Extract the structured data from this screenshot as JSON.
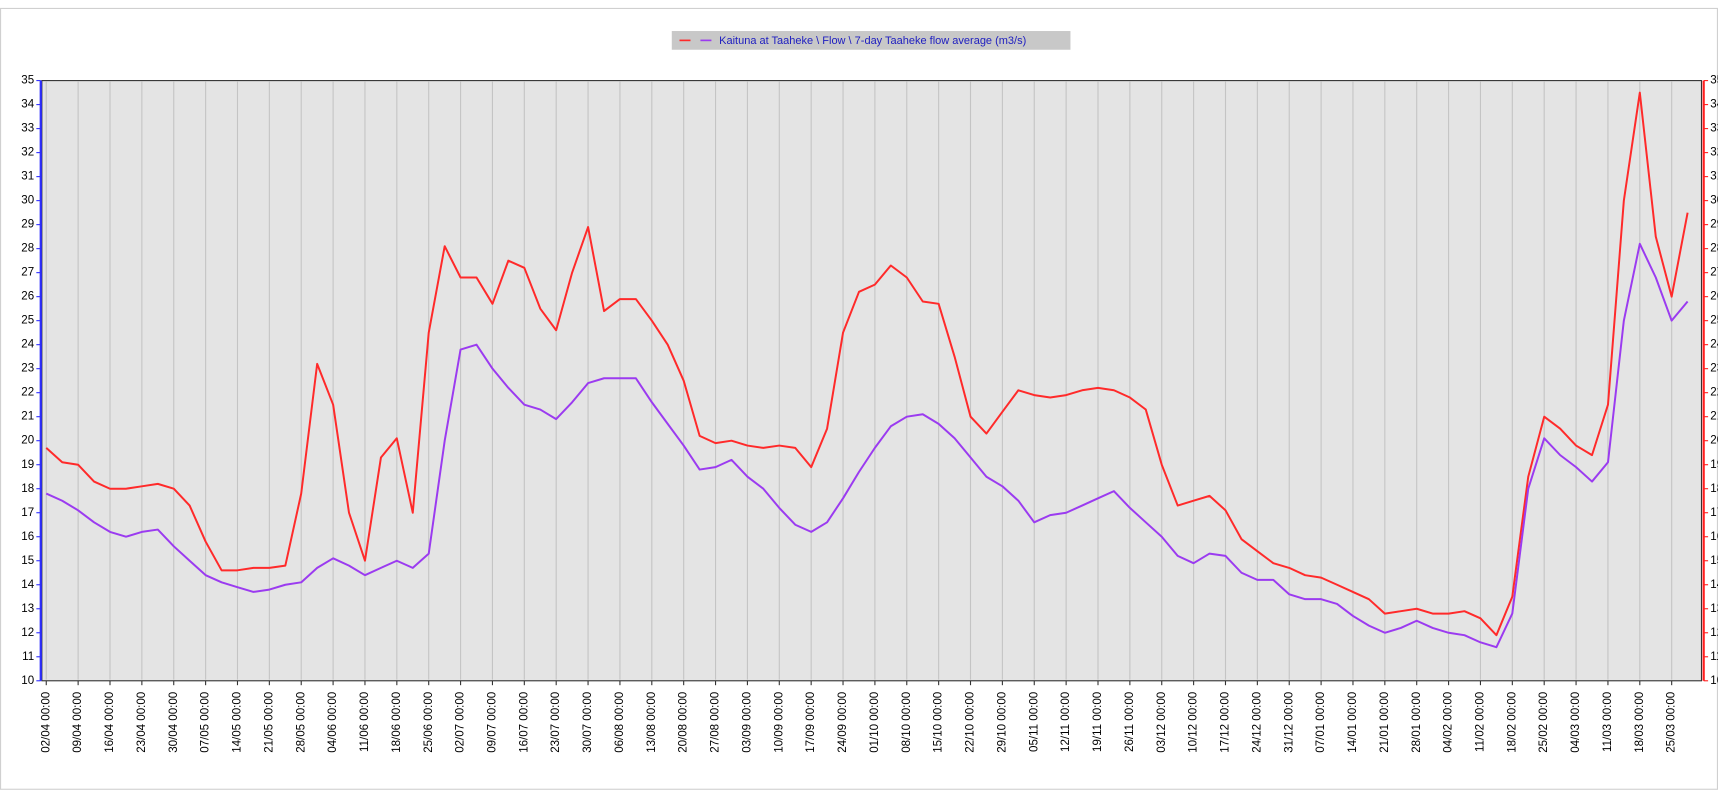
{
  "chart_data": {
    "type": "line",
    "legend_text": "Kaituna at Taaheke \\ Flow \\ 7-day Taaheke flow average (m3/s)",
    "legend": "top",
    "grid": true,
    "categories": [
      "02/04 00:00",
      null,
      "09/04 00:00",
      null,
      "16/04 00:00",
      null,
      "23/04 00:00",
      null,
      "30/04 00:00",
      null,
      "07/05 00:00",
      null,
      "14/05 00:00",
      null,
      "21/05 00:00",
      null,
      "28/05 00:00",
      null,
      "04/06 00:00",
      null,
      "11/06 00:00",
      null,
      "18/06 00:00",
      null,
      "25/06 00:00",
      null,
      "02/07 00:00",
      null,
      "09/07 00:00",
      null,
      "16/07 00:00",
      null,
      "23/07 00:00",
      null,
      "30/07 00:00",
      null,
      "06/08 00:00",
      null,
      "13/08 00:00",
      null,
      "20/08 00:00",
      null,
      "27/08 00:00",
      null,
      "03/09 00:00",
      null,
      "10/09 00:00",
      null,
      "17/09 00:00",
      null,
      "24/09 00:00",
      null,
      "01/10 00:00",
      null,
      "08/10 00:00",
      null,
      "15/10 00:00",
      null,
      "22/10 00:00",
      null,
      "29/10 00:00",
      null,
      "05/11 00:00",
      null,
      "12/11 00:00",
      null,
      "19/11 00:00",
      null,
      "26/11 00:00",
      null,
      "03/12 00:00",
      null,
      "10/12 00:00",
      null,
      "17/12 00:00",
      null,
      "24/12 00:00",
      null,
      "31/12 00:00",
      null,
      "07/01 00:00",
      null,
      "14/01 00:00",
      null,
      "21/01 00:00",
      null,
      "28/01 00:00",
      null,
      "04/02 00:00",
      null,
      "11/02 00:00",
      null,
      "18/02 00:00",
      null,
      "25/02 00:00",
      null,
      "04/03 00:00",
      null,
      "11/03 00:00",
      null,
      "18/03 00:00",
      null,
      "25/03 00:00",
      null
    ],
    "series": [
      {
        "color": "#ff2a2a",
        "values": [
          19.7,
          19.1,
          19.0,
          18.3,
          18.0,
          18.0,
          18.1,
          18.2,
          18.0,
          17.3,
          15.8,
          14.6,
          14.6,
          14.7,
          14.7,
          14.8,
          17.8,
          23.2,
          21.5,
          17.0,
          15.0,
          19.3,
          20.1,
          17.0,
          24.5,
          28.1,
          26.8,
          26.8,
          25.7,
          27.5,
          27.2,
          25.5,
          24.6,
          27.0,
          28.9,
          25.4,
          25.9,
          25.9,
          25.0,
          24.0,
          22.5,
          20.2,
          19.9,
          20.0,
          19.8,
          19.7,
          19.8,
          19.7,
          18.9,
          20.5,
          24.5,
          26.2,
          26.5,
          27.3,
          26.8,
          25.8,
          25.7,
          23.5,
          21.0,
          20.3,
          21.2,
          22.1,
          21.9,
          21.8,
          21.9,
          22.1,
          22.2,
          22.1,
          21.8,
          21.3,
          19.0,
          17.3,
          17.5,
          17.7,
          17.1,
          15.9,
          15.4,
          14.9,
          14.7,
          14.4,
          14.3,
          14.0,
          13.7,
          13.4,
          12.8,
          12.9,
          13.0,
          12.8,
          12.8,
          12.9,
          12.6,
          11.9,
          13.5,
          18.5,
          21.0,
          20.5,
          19.8,
          19.4,
          21.5,
          30.0,
          34.5,
          28.5,
          26.0,
          29.5
        ]
      },
      {
        "color": "#9b3bf0",
        "values": [
          17.8,
          17.5,
          17.1,
          16.6,
          16.2,
          16.0,
          16.2,
          16.3,
          15.6,
          15.0,
          14.4,
          14.1,
          13.9,
          13.7,
          13.8,
          14.0,
          14.1,
          14.7,
          15.1,
          14.8,
          14.4,
          14.7,
          15.0,
          14.7,
          15.3,
          20.0,
          23.8,
          24.0,
          23.0,
          22.2,
          21.5,
          21.3,
          20.9,
          21.6,
          22.4,
          22.6,
          22.6,
          22.6,
          21.6,
          20.7,
          19.8,
          18.8,
          18.9,
          19.2,
          18.5,
          18.0,
          17.2,
          16.5,
          16.2,
          16.6,
          17.6,
          18.7,
          19.7,
          20.6,
          21.0,
          21.1,
          20.7,
          20.1,
          19.3,
          18.5,
          18.1,
          17.5,
          16.6,
          16.9,
          17.0,
          17.3,
          17.6,
          17.9,
          17.2,
          16.6,
          16.0,
          15.2,
          14.9,
          15.3,
          15.2,
          14.5,
          14.2,
          14.2,
          13.6,
          13.4,
          13.4,
          13.2,
          12.7,
          12.3,
          12.0,
          12.2,
          12.5,
          12.2,
          12.0,
          11.9,
          11.6,
          11.4,
          12.8,
          18.0,
          20.1,
          19.4,
          18.9,
          18.3,
          19.1,
          25.0,
          28.2,
          26.8,
          25.0,
          25.8
        ]
      }
    ],
    "ylim": [
      10,
      35
    ],
    "yticks": [
      10,
      11,
      12,
      13,
      14,
      15,
      16,
      17,
      18,
      19,
      20,
      21,
      22,
      23,
      24,
      25,
      26,
      27,
      28,
      29,
      30,
      31,
      32,
      33,
      34,
      35
    ]
  }
}
